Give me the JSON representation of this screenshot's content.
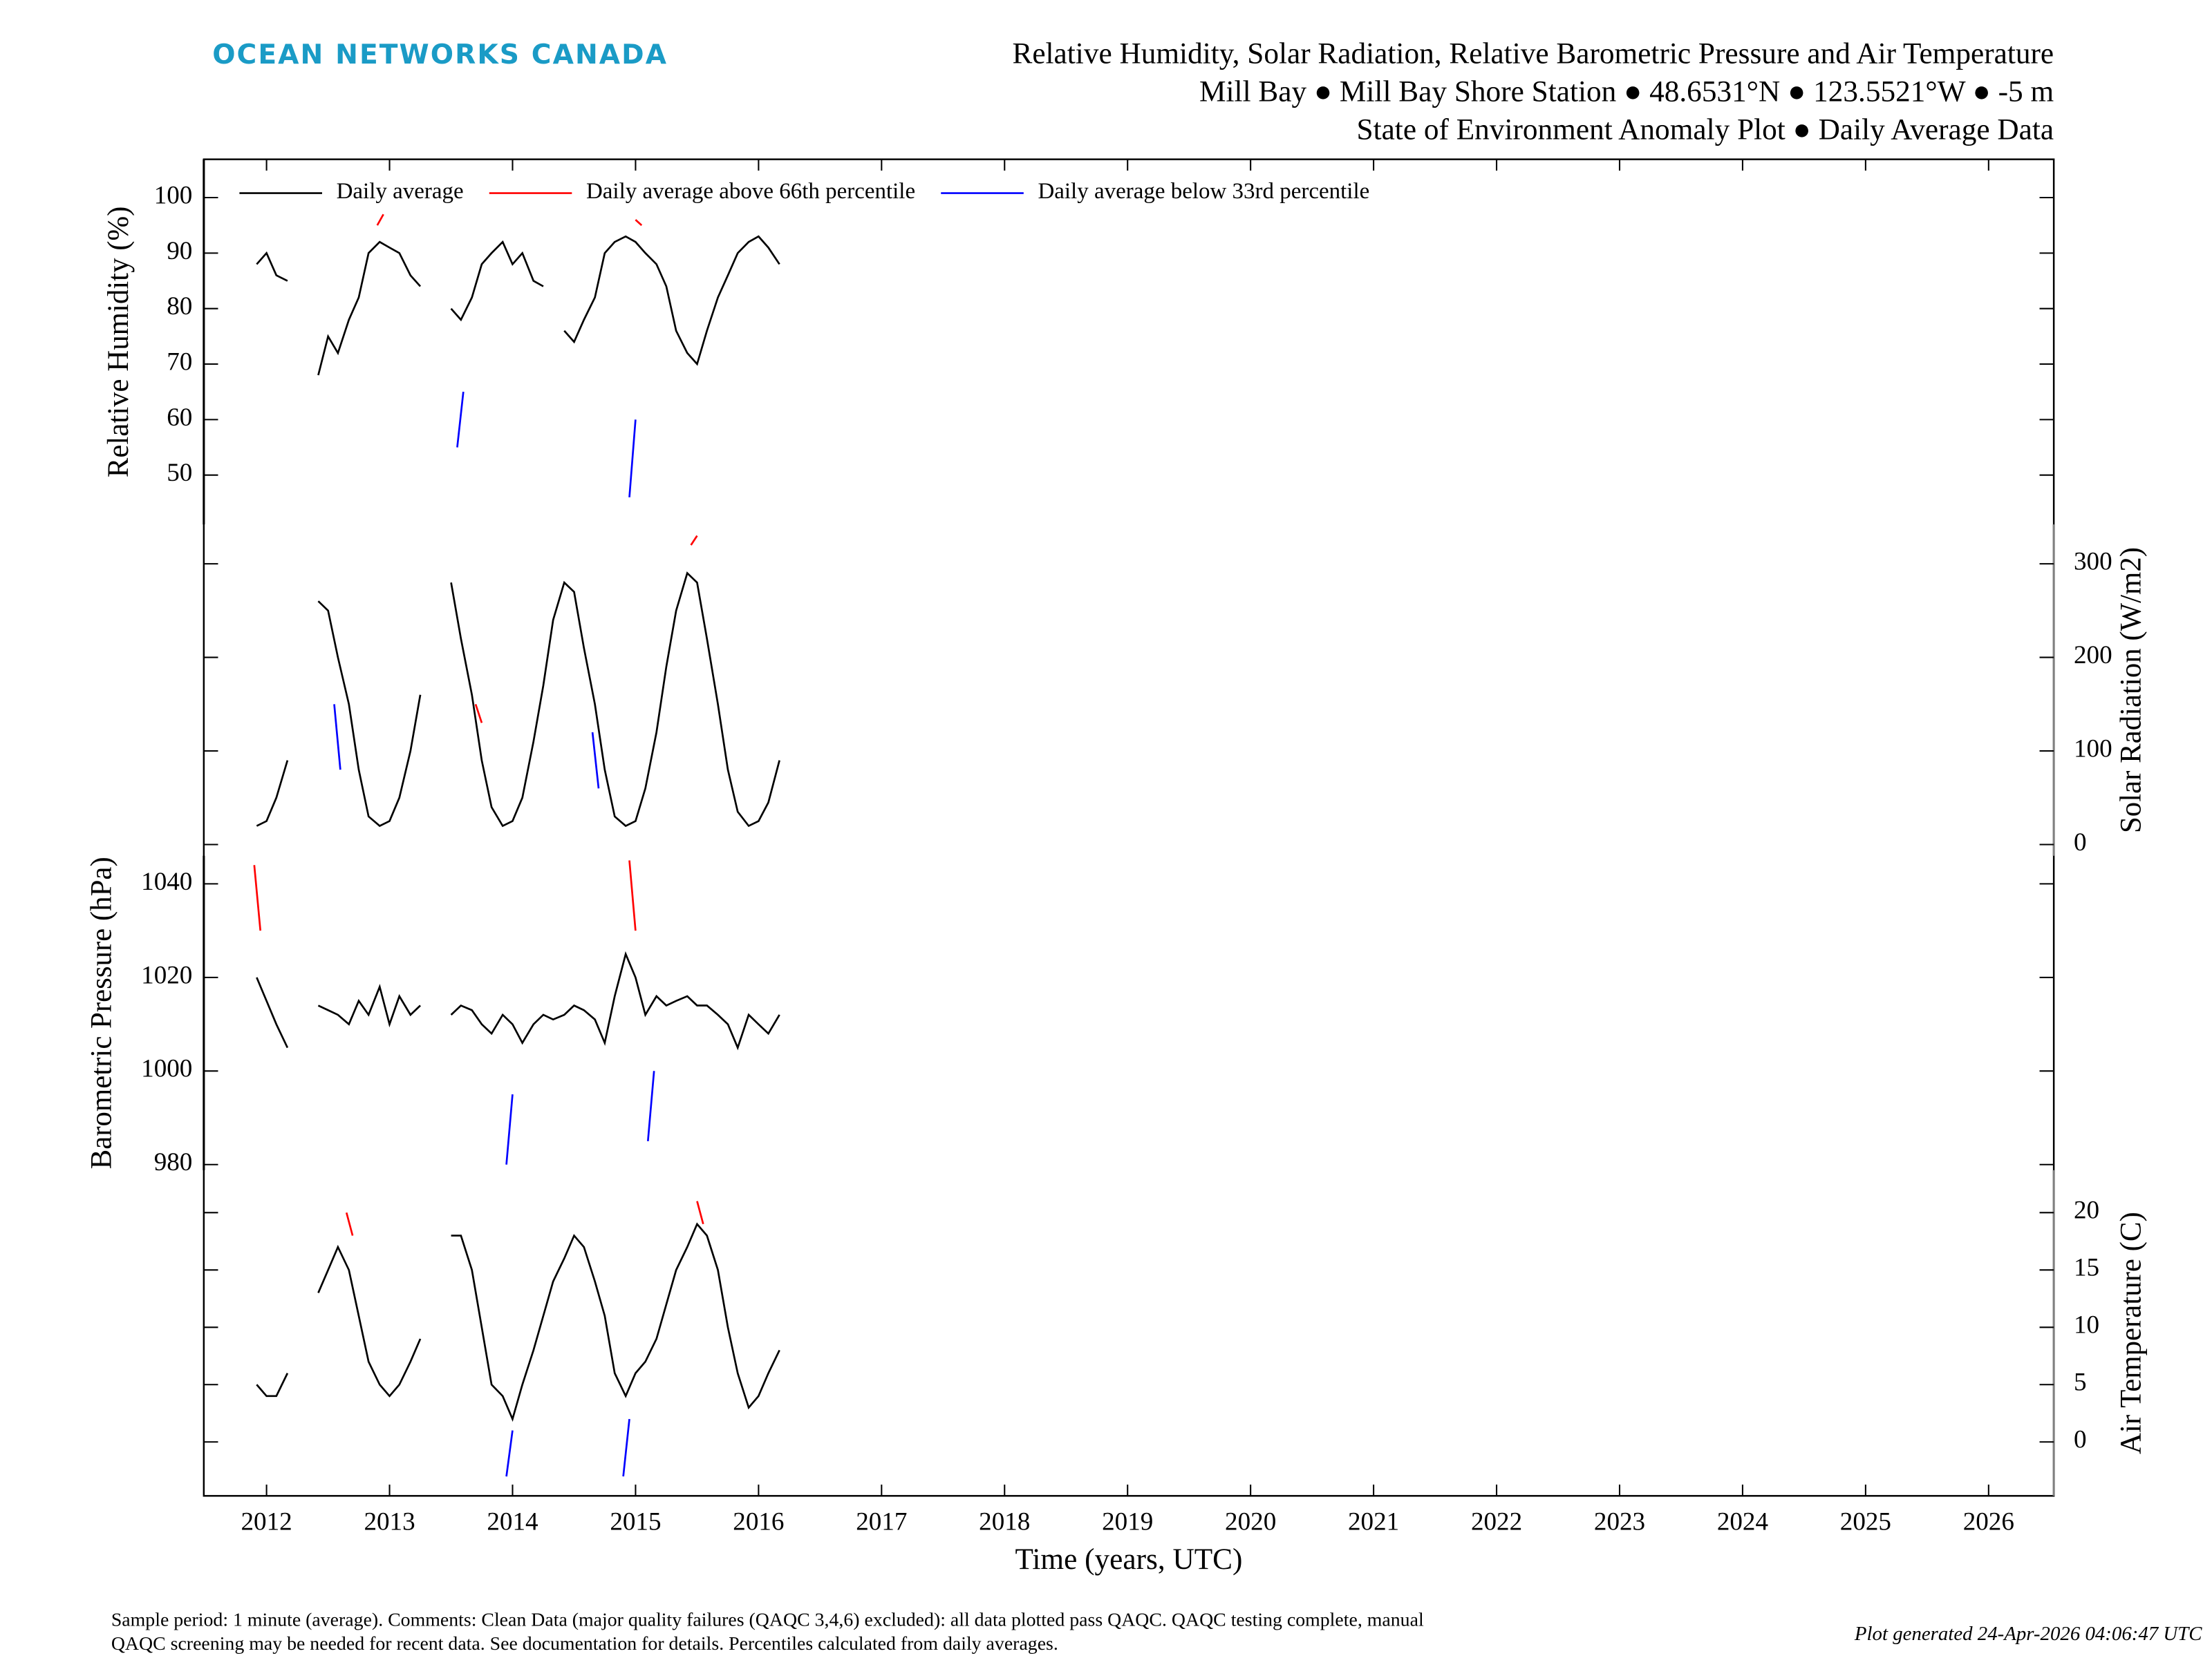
{
  "header": {
    "brand": "OCEAN NETWORKS CANADA",
    "title_lines": [
      "Relative Humidity, Solar Radiation, Relative Barometric Pressure and Air Temperature",
      "Mill Bay ● Mill Bay Shore Station ● 48.6531°N ● 123.5521°W ● -5 m",
      "State of Environment Anomaly Plot ● Daily Average Data"
    ]
  },
  "x_axis": {
    "label": "Time (years, UTC)",
    "xlim": [
      2011.49,
      2026.53
    ],
    "xticks": [
      2012,
      2013,
      2014,
      2015,
      2016,
      2017,
      2018,
      2019,
      2020,
      2021,
      2022,
      2023,
      2024,
      2025,
      2026
    ]
  },
  "footer": {
    "note_lines": [
      "Sample period: 1 minute (average). Comments: Clean Data (major quality failures (QAQC 3,4,6) excluded): all data plotted pass QAQC. QAQC testing complete, manual",
      "QAQC screening may be needed for recent data. See documentation for details. Percentiles calculated from daily averages."
    ],
    "generated": "Plot generated 24-Apr-2026 04:06:47 UTC"
  },
  "chart_data": [
    {
      "type": "line",
      "ylabel": "Relative Humidity (%)",
      "axis_side": "left",
      "axis_color": "#000000",
      "legend": true,
      "ylim": [
        41.1,
        106.9
      ],
      "yticks": [
        50,
        60,
        70,
        80,
        90,
        100
      ],
      "x": [
        2011.92,
        2012.0,
        2012.08,
        2012.17,
        2012.25,
        2012.33,
        2012.42,
        2012.5,
        2012.58,
        2012.67,
        2012.75,
        2012.83,
        2012.92,
        2013.0,
        2013.08,
        2013.17,
        2013.25,
        2013.33,
        2013.42,
        2013.5,
        2013.58,
        2013.67,
        2013.75,
        2013.83,
        2013.92,
        2014.0,
        2014.08,
        2014.17,
        2014.25,
        2014.33,
        2014.42,
        2014.5,
        2014.58,
        2014.67,
        2014.75,
        2014.83,
        2014.92,
        2015.0,
        2015.08,
        2015.17,
        2015.25,
        2015.33,
        2015.42,
        2015.5,
        2015.58,
        2015.67,
        2015.75,
        2015.83,
        2015.92,
        2016.0,
        2016.08,
        2016.17
      ],
      "series": [
        {
          "name": "Daily average",
          "color": "#000000",
          "values": [
            88,
            90,
            86,
            85,
            null,
            null,
            68,
            75,
            72,
            78,
            82,
            90,
            92,
            91,
            90,
            86,
            84,
            null,
            null,
            80,
            78,
            82,
            88,
            90,
            92,
            88,
            90,
            85,
            84,
            null,
            76,
            74,
            78,
            82,
            90,
            92,
            93,
            92,
            90,
            88,
            84,
            76,
            72,
            70,
            76,
            82,
            86,
            90,
            92,
            93,
            91,
            88
          ]
        },
        {
          "name": "Daily average above 66th percentile",
          "color": "#ff0000",
          "x": [
            2012.9,
            2012.95,
            2013.0,
            2015.0,
            2015.05
          ],
          "values": [
            95,
            97,
            null,
            96,
            95
          ]
        },
        {
          "name": "Daily average below 33rd percentile",
          "color": "#0000ff",
          "x": [
            2013.55,
            2013.6,
            2014.0,
            2014.95,
            2015.0
          ],
          "values": [
            55,
            65,
            null,
            46,
            60
          ]
        }
      ]
    },
    {
      "type": "line",
      "ylabel": "Solar Radiation (W/m2)",
      "axis_side": "right",
      "axis_color": "#808080",
      "ylim": [
        -12,
        342
      ],
      "yticks": [
        0,
        100,
        200,
        300
      ],
      "x": [
        2011.92,
        2012.0,
        2012.08,
        2012.17,
        2012.25,
        2012.33,
        2012.42,
        2012.5,
        2012.58,
        2012.67,
        2012.75,
        2012.83,
        2012.92,
        2013.0,
        2013.08,
        2013.17,
        2013.25,
        2013.33,
        2013.42,
        2013.5,
        2013.58,
        2013.67,
        2013.75,
        2013.83,
        2013.92,
        2014.0,
        2014.08,
        2014.17,
        2014.25,
        2014.33,
        2014.42,
        2014.5,
        2014.58,
        2014.67,
        2014.75,
        2014.83,
        2014.92,
        2015.0,
        2015.08,
        2015.17,
        2015.25,
        2015.33,
        2015.42,
        2015.5,
        2015.58,
        2015.67,
        2015.75,
        2015.83,
        2015.92,
        2016.0,
        2016.08,
        2016.17
      ],
      "series": [
        {
          "name": "Daily average",
          "color": "#000000",
          "values": [
            20,
            25,
            50,
            90,
            null,
            null,
            260,
            250,
            200,
            150,
            80,
            30,
            20,
            25,
            50,
            100,
            160,
            null,
            null,
            280,
            220,
            160,
            90,
            40,
            20,
            25,
            50,
            110,
            170,
            240,
            280,
            270,
            210,
            150,
            80,
            30,
            20,
            25,
            60,
            120,
            190,
            250,
            290,
            280,
            220,
            150,
            80,
            35,
            20,
            25,
            45,
            90
          ]
        },
        {
          "name": "Daily average above 66th percentile",
          "color": "#ff0000",
          "x": [
            2015.45,
            2015.5,
            2015.55,
            2013.7,
            2013.75
          ],
          "values": [
            320,
            330,
            null,
            150,
            130
          ]
        },
        {
          "name": "Daily average below 33rd percentile",
          "color": "#0000ff",
          "x": [
            2012.55,
            2012.6,
            2012.65,
            2014.65,
            2014.7
          ],
          "values": [
            150,
            80,
            null,
            120,
            60
          ]
        }
      ]
    },
    {
      "type": "line",
      "ylabel": "Barometric Pressure (hPa)",
      "axis_side": "left",
      "axis_color": "#000000",
      "ylim": [
        978.8,
        1046
      ],
      "yticks": [
        980,
        1000,
        1020,
        1040
      ],
      "x": [
        2011.92,
        2012.0,
        2012.08,
        2012.17,
        2012.25,
        2012.33,
        2012.42,
        2012.5,
        2012.58,
        2012.67,
        2012.75,
        2012.83,
        2012.92,
        2013.0,
        2013.08,
        2013.17,
        2013.25,
        2013.33,
        2013.42,
        2013.5,
        2013.58,
        2013.67,
        2013.75,
        2013.83,
        2013.92,
        2014.0,
        2014.08,
        2014.17,
        2014.25,
        2014.33,
        2014.42,
        2014.5,
        2014.58,
        2014.67,
        2014.75,
        2014.83,
        2014.92,
        2015.0,
        2015.08,
        2015.17,
        2015.25,
        2015.33,
        2015.42,
        2015.5,
        2015.58,
        2015.67,
        2015.75,
        2015.83,
        2015.92,
        2016.0,
        2016.08,
        2016.17
      ],
      "series": [
        {
          "name": "Daily average",
          "color": "#000000",
          "values": [
            1020,
            1015,
            1010,
            1005,
            null,
            null,
            1014,
            1013,
            1012,
            1010,
            1015,
            1012,
            1018,
            1010,
            1016,
            1012,
            1014,
            null,
            null,
            1012,
            1014,
            1013,
            1010,
            1008,
            1012,
            1010,
            1006,
            1010,
            1012,
            1011,
            1012,
            1014,
            1013,
            1011,
            1006,
            1016,
            1025,
            1020,
            1012,
            1016,
            1014,
            1015,
            1016,
            1014,
            1014,
            1012,
            1010,
            1005,
            1012,
            1010,
            1008,
            1012
          ]
        },
        {
          "name": "Daily average above 66th percentile",
          "color": "#ff0000",
          "x": [
            2011.9,
            2011.95,
            2012.0,
            2014.95,
            2015.0
          ],
          "values": [
            1044,
            1030,
            null,
            1045,
            1030
          ]
        },
        {
          "name": "Daily average below 33rd percentile",
          "color": "#0000ff",
          "x": [
            2013.95,
            2014.0,
            2014.05,
            2015.1,
            2015.15
          ],
          "values": [
            980,
            995,
            null,
            985,
            1000
          ]
        }
      ]
    },
    {
      "type": "line",
      "ylabel": "Air Temperature (C)",
      "axis_side": "right",
      "axis_color": "#808080",
      "ylim": [
        -4.7,
        23.7
      ],
      "yticks": [
        0,
        5,
        10,
        15,
        20
      ],
      "x": [
        2011.92,
        2012.0,
        2012.08,
        2012.17,
        2012.25,
        2012.33,
        2012.42,
        2012.5,
        2012.58,
        2012.67,
        2012.75,
        2012.83,
        2012.92,
        2013.0,
        2013.08,
        2013.17,
        2013.25,
        2013.33,
        2013.42,
        2013.5,
        2013.58,
        2013.67,
        2013.75,
        2013.83,
        2013.92,
        2014.0,
        2014.08,
        2014.17,
        2014.25,
        2014.33,
        2014.42,
        2014.5,
        2014.58,
        2014.67,
        2014.75,
        2014.83,
        2014.92,
        2015.0,
        2015.08,
        2015.17,
        2015.25,
        2015.33,
        2015.42,
        2015.5,
        2015.58,
        2015.67,
        2015.75,
        2015.83,
        2015.92,
        2016.0,
        2016.08,
        2016.17
      ],
      "series": [
        {
          "name": "Daily average",
          "color": "#000000",
          "values": [
            5,
            4,
            4,
            6,
            null,
            null,
            13,
            15,
            17,
            15,
            11,
            7,
            5,
            4,
            5,
            7,
            9,
            null,
            null,
            18,
            18,
            15,
            10,
            5,
            4,
            2,
            5,
            8,
            11,
            14,
            16,
            18,
            17,
            14,
            11,
            6,
            4,
            6,
            7,
            9,
            12,
            15,
            17,
            19,
            18,
            15,
            10,
            6,
            3,
            4,
            6,
            8
          ]
        },
        {
          "name": "Daily average above 66th percentile",
          "color": "#ff0000",
          "x": [
            2012.65,
            2012.7,
            2012.75,
            2015.5,
            2015.55
          ],
          "values": [
            20,
            18,
            null,
            21,
            19
          ]
        },
        {
          "name": "Daily average below 33rd percentile",
          "color": "#0000ff",
          "x": [
            2013.95,
            2014.0,
            2014.05,
            2014.9,
            2014.95
          ],
          "values": [
            -3,
            1,
            null,
            -3,
            2
          ]
        }
      ]
    }
  ]
}
